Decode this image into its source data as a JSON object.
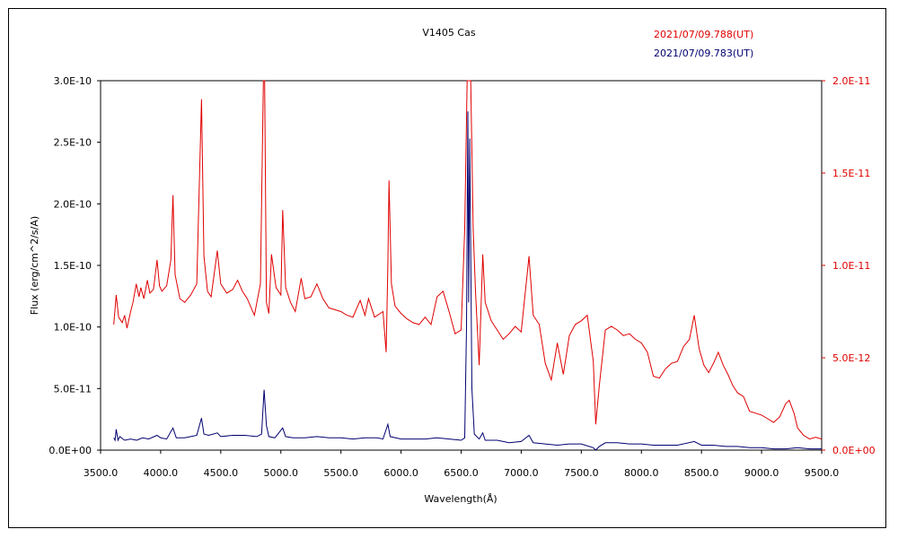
{
  "chart_data": {
    "type": "line",
    "title": "V1405 Cas",
    "xlabel": "Wavelength(Å)",
    "ylabel": "Flux (erg/cm^2/s/A)",
    "xlim": [
      3500,
      9500
    ],
    "ylim_left": [
      0,
      3e-10
    ],
    "ylim_right": [
      0,
      2e-11
    ],
    "grid": false,
    "legend_placement": "top-right",
    "x_ticks": [
      3500,
      4000,
      4500,
      5000,
      5500,
      6000,
      6500,
      7000,
      7500,
      8000,
      8500,
      9000,
      9500
    ],
    "x_tick_labels": [
      "3500.0",
      "4000.0",
      "4500.0",
      "5000.0",
      "5500.0",
      "6000.0",
      "6500.0",
      "7000.0",
      "7500.0",
      "8000.0",
      "8500.0",
      "9000.0",
      "9500.0"
    ],
    "y_left_ticks": [
      0,
      5e-11,
      1e-10,
      1.5e-10,
      2e-10,
      2.5e-10,
      3e-10
    ],
    "y_left_tick_labels": [
      "0.0E+00",
      "5.0E-11",
      "1.0E-10",
      "1.5E-10",
      "2.0E-10",
      "2.5E-10",
      "3.0E-10"
    ],
    "y_right_ticks": [
      0,
      5e-12,
      1e-11,
      1.5e-11,
      2e-11
    ],
    "y_right_tick_labels": [
      "0.0E+00",
      "5.0E-12",
      "1.0E-11",
      "1.5E-11",
      "2.0E-11"
    ],
    "series": [
      {
        "name": "2021/07/09.788(UT)",
        "color": "#e00000",
        "axis": "right",
        "points": [
          [
            3610,
            6.8e-12
          ],
          [
            3630,
            8.4e-12
          ],
          [
            3650,
            7.2e-12
          ],
          [
            3680,
            6.9e-12
          ],
          [
            3700,
            7.3e-12
          ],
          [
            3720,
            6.6e-12
          ],
          [
            3750,
            7.5e-12
          ],
          [
            3770,
            8e-12
          ],
          [
            3797,
            9e-12
          ],
          [
            3820,
            8.3e-12
          ],
          [
            3835,
            8.8e-12
          ],
          [
            3860,
            8.2e-12
          ],
          [
            3889,
            9.2e-12
          ],
          [
            3910,
            8.5e-12
          ],
          [
            3940,
            8.7e-12
          ],
          [
            3970,
            1.03e-11
          ],
          [
            3990,
            8.9e-12
          ],
          [
            4010,
            8.6e-12
          ],
          [
            4050,
            8.9e-12
          ],
          [
            4085,
            1.03e-11
          ],
          [
            4102,
            1.38e-11
          ],
          [
            4120,
            9.5e-12
          ],
          [
            4160,
            8.2e-12
          ],
          [
            4200,
            8e-12
          ],
          [
            4250,
            8.4e-12
          ],
          [
            4300,
            9e-12
          ],
          [
            4340,
            1.9e-11
          ],
          [
            4360,
            1.05e-11
          ],
          [
            4390,
            8.6e-12
          ],
          [
            4420,
            8.3e-12
          ],
          [
            4471,
            1.08e-11
          ],
          [
            4500,
            9e-12
          ],
          [
            4550,
            8.5e-12
          ],
          [
            4600,
            8.7e-12
          ],
          [
            4640,
            9.2e-12
          ],
          [
            4680,
            8.6e-12
          ],
          [
            4720,
            8.2e-12
          ],
          [
            4780,
            7.3e-12
          ],
          [
            4830,
            9e-12
          ],
          [
            4855,
            2e-11
          ],
          [
            4865,
            2e-11
          ],
          [
            4880,
            8e-12
          ],
          [
            4900,
            7.4e-12
          ],
          [
            4922,
            1.06e-11
          ],
          [
            4960,
            8.8e-12
          ],
          [
            5000,
            8.4e-12
          ],
          [
            5015,
            1.3e-11
          ],
          [
            5040,
            8.8e-12
          ],
          [
            5080,
            8e-12
          ],
          [
            5120,
            7.5e-12
          ],
          [
            5169,
            9.3e-12
          ],
          [
            5200,
            8.2e-12
          ],
          [
            5250,
            8.3e-12
          ],
          [
            5300,
            9e-12
          ],
          [
            5350,
            8.2e-12
          ],
          [
            5400,
            7.7e-12
          ],
          [
            5450,
            7.6e-12
          ],
          [
            5500,
            7.5e-12
          ],
          [
            5550,
            7.3e-12
          ],
          [
            5600,
            7.2e-12
          ],
          [
            5660,
            8.1e-12
          ],
          [
            5700,
            7.3e-12
          ],
          [
            5730,
            8.2e-12
          ],
          [
            5780,
            7.2e-12
          ],
          [
            5850,
            7.5e-12
          ],
          [
            5876,
            5.3e-12
          ],
          [
            5890,
            1e-11
          ],
          [
            5900,
            1.46e-11
          ],
          [
            5920,
            9e-12
          ],
          [
            5950,
            7.8e-12
          ],
          [
            6000,
            7.4e-12
          ],
          [
            6050,
            7.1e-12
          ],
          [
            6100,
            6.9e-12
          ],
          [
            6150,
            6.8e-12
          ],
          [
            6200,
            7.2e-12
          ],
          [
            6250,
            6.8e-12
          ],
          [
            6300,
            8.3e-12
          ],
          [
            6350,
            8.6e-12
          ],
          [
            6400,
            7.5e-12
          ],
          [
            6450,
            6.3e-12
          ],
          [
            6500,
            6.5e-12
          ],
          [
            6530,
            1.2e-11
          ],
          [
            6550,
            2e-11
          ],
          [
            6580,
            2e-11
          ],
          [
            6600,
            1.2e-11
          ],
          [
            6620,
            8.5e-12
          ],
          [
            6650,
            4.6e-12
          ],
          [
            6680,
            1.06e-11
          ],
          [
            6700,
            8e-12
          ],
          [
            6750,
            7e-12
          ],
          [
            6800,
            6.5e-12
          ],
          [
            6850,
            6e-12
          ],
          [
            6900,
            6.3e-12
          ],
          [
            6950,
            6.7e-12
          ],
          [
            7000,
            6.4e-12
          ],
          [
            7065,
            1.05e-11
          ],
          [
            7100,
            7.3e-12
          ],
          [
            7150,
            6.8e-12
          ],
          [
            7200,
            4.7e-12
          ],
          [
            7250,
            3.8e-12
          ],
          [
            7300,
            5.8e-12
          ],
          [
            7350,
            4.1e-12
          ],
          [
            7400,
            6.2e-12
          ],
          [
            7450,
            6.8e-12
          ],
          [
            7500,
            7e-12
          ],
          [
            7550,
            7.3e-12
          ],
          [
            7600,
            4.8e-12
          ],
          [
            7620,
            1.4e-12
          ],
          [
            7650,
            3.5e-12
          ],
          [
            7700,
            6.5e-12
          ],
          [
            7750,
            6.7e-12
          ],
          [
            7800,
            6.5e-12
          ],
          [
            7850,
            6.2e-12
          ],
          [
            7900,
            6.3e-12
          ],
          [
            7950,
            6e-12
          ],
          [
            8000,
            5.8e-12
          ],
          [
            8050,
            5.3e-12
          ],
          [
            8100,
            4e-12
          ],
          [
            8150,
            3.9e-12
          ],
          [
            8200,
            4.4e-12
          ],
          [
            8250,
            4.7e-12
          ],
          [
            8300,
            4.8e-12
          ],
          [
            8350,
            5.6e-12
          ],
          [
            8400,
            6e-12
          ],
          [
            8440,
            7.3e-12
          ],
          [
            8480,
            5.5e-12
          ],
          [
            8520,
            4.6e-12
          ],
          [
            8560,
            4.2e-12
          ],
          [
            8600,
            4.7e-12
          ],
          [
            8640,
            5.3e-12
          ],
          [
            8680,
            4.6e-12
          ],
          [
            8720,
            4.1e-12
          ],
          [
            8760,
            3.5e-12
          ],
          [
            8800,
            3.1e-12
          ],
          [
            8850,
            2.9e-12
          ],
          [
            8900,
            2.1e-12
          ],
          [
            8950,
            2e-12
          ],
          [
            9000,
            1.9e-12
          ],
          [
            9050,
            1.7e-12
          ],
          [
            9100,
            1.5e-12
          ],
          [
            9150,
            1.8e-12
          ],
          [
            9200,
            2.5e-12
          ],
          [
            9230,
            2.7e-12
          ],
          [
            9270,
            2e-12
          ],
          [
            9300,
            1.2e-12
          ],
          [
            9350,
            8e-13
          ],
          [
            9400,
            6e-13
          ],
          [
            9450,
            7e-13
          ],
          [
            9500,
            6e-13
          ]
        ]
      },
      {
        "name": "2021/07/09.783(UT)",
        "color": "#000070",
        "axis": "left",
        "points": [
          [
            3610,
            1e-11
          ],
          [
            3620,
            8e-12
          ],
          [
            3630,
            1.7e-11
          ],
          [
            3645,
            8e-12
          ],
          [
            3660,
            1.1e-11
          ],
          [
            3700,
            8e-12
          ],
          [
            3750,
            9e-12
          ],
          [
            3800,
            8e-12
          ],
          [
            3850,
            1e-11
          ],
          [
            3900,
            9e-12
          ],
          [
            3970,
            1.2e-11
          ],
          [
            4000,
            1e-11
          ],
          [
            4050,
            9e-12
          ],
          [
            4102,
            1.8e-11
          ],
          [
            4130,
            1e-11
          ],
          [
            4200,
            1e-11
          ],
          [
            4250,
            1.1e-11
          ],
          [
            4300,
            1.2e-11
          ],
          [
            4340,
            2.6e-11
          ],
          [
            4360,
            1.3e-11
          ],
          [
            4400,
            1.2e-11
          ],
          [
            4471,
            1.4e-11
          ],
          [
            4500,
            1.1e-11
          ],
          [
            4600,
            1.2e-11
          ],
          [
            4700,
            1.2e-11
          ],
          [
            4800,
            1.1e-11
          ],
          [
            4840,
            1.3e-11
          ],
          [
            4861,
            4.9e-11
          ],
          [
            4880,
            2e-11
          ],
          [
            4900,
            1.1e-11
          ],
          [
            4950,
            1e-11
          ],
          [
            5015,
            1.8e-11
          ],
          [
            5040,
            1.1e-11
          ],
          [
            5100,
            1e-11
          ],
          [
            5200,
            1e-11
          ],
          [
            5300,
            1.1e-11
          ],
          [
            5400,
            1e-11
          ],
          [
            5500,
            1e-11
          ],
          [
            5600,
            9e-12
          ],
          [
            5700,
            1e-11
          ],
          [
            5800,
            1e-11
          ],
          [
            5850,
            9e-12
          ],
          [
            5890,
            2.1e-11
          ],
          [
            5910,
            1.1e-11
          ],
          [
            6000,
            9e-12
          ],
          [
            6100,
            9e-12
          ],
          [
            6200,
            9e-12
          ],
          [
            6300,
            1e-11
          ],
          [
            6400,
            9e-12
          ],
          [
            6500,
            8e-12
          ],
          [
            6530,
            1e-11
          ],
          [
            6545,
            1e-10
          ],
          [
            6556,
            2.75e-10
          ],
          [
            6563,
            1.2e-10
          ],
          [
            6572,
            2.53e-10
          ],
          [
            6590,
            5e-11
          ],
          [
            6610,
            1.3e-11
          ],
          [
            6650,
            9e-12
          ],
          [
            6680,
            1.4e-11
          ],
          [
            6700,
            8e-12
          ],
          [
            6800,
            8e-12
          ],
          [
            6900,
            6e-12
          ],
          [
            7000,
            7e-12
          ],
          [
            7065,
            1.2e-11
          ],
          [
            7100,
            6e-12
          ],
          [
            7200,
            5e-12
          ],
          [
            7300,
            4e-12
          ],
          [
            7400,
            5e-12
          ],
          [
            7500,
            5e-12
          ],
          [
            7600,
            2e-12
          ],
          [
            7620,
            0.0
          ],
          [
            7650,
            3e-12
          ],
          [
            7700,
            6e-12
          ],
          [
            7800,
            6e-12
          ],
          [
            7900,
            5e-12
          ],
          [
            8000,
            5e-12
          ],
          [
            8100,
            4e-12
          ],
          [
            8200,
            4e-12
          ],
          [
            8300,
            4e-12
          ],
          [
            8440,
            7e-12
          ],
          [
            8500,
            4e-12
          ],
          [
            8600,
            4e-12
          ],
          [
            8700,
            3e-12
          ],
          [
            8800,
            3e-12
          ],
          [
            8900,
            2e-12
          ],
          [
            9000,
            2e-12
          ],
          [
            9100,
            1e-12
          ],
          [
            9200,
            1e-12
          ],
          [
            9300,
            2e-12
          ],
          [
            9400,
            1e-12
          ],
          [
            9500,
            1e-12
          ]
        ]
      }
    ]
  }
}
